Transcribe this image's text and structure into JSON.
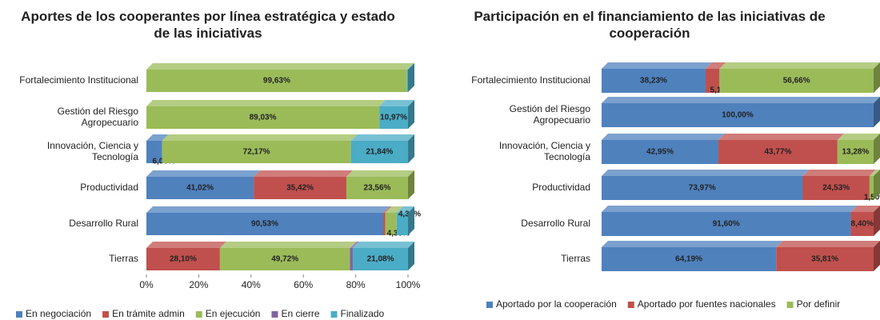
{
  "chart_data": [
    {
      "type": "bar",
      "orientation": "horizontal",
      "stacked": true,
      "title": "Aportes de los cooperantes por línea estratégica y estado de las iniciativas",
      "categories": [
        "Fortalecimiento Institucional",
        "Gestión del Riesgo Agropecuario",
        "Innovación, Ciencia y Tecnología",
        "Productividad",
        "Desarrollo Rural",
        "Tierras"
      ],
      "series": [
        {
          "name": "En negociación",
          "color": "#4f81bd",
          "values": [
            null,
            null,
            6.0,
            41.02,
            90.53,
            null
          ],
          "value_labels": [
            null,
            null,
            "6,00%",
            "41,02%",
            "90,53%",
            null
          ]
        },
        {
          "name": "En trámite admin",
          "color": "#c0504d",
          "values": [
            null,
            null,
            null,
            35.42,
            0.81,
            28.1
          ],
          "value_labels": [
            null,
            null,
            null,
            "35,42%",
            null,
            "28,10%"
          ]
        },
        {
          "name": "En ejecución",
          "color": "#9bbb59",
          "values": [
            99.63,
            89.03,
            72.17,
            23.56,
            4.33,
            49.72
          ],
          "value_labels": [
            "99,63%",
            "89,03%",
            "72,17%",
            "23,56%",
            "4,33%",
            "49,72%"
          ]
        },
        {
          "name": "En cierre",
          "color": "#8064a2",
          "values": [
            null,
            null,
            null,
            null,
            null,
            1.1
          ],
          "value_labels": [
            null,
            null,
            null,
            null,
            null,
            null
          ]
        },
        {
          "name": "Finalizado",
          "color": "#4bacc6",
          "values": [
            0.37,
            10.97,
            21.84,
            null,
            4.33,
            21.08
          ],
          "value_labels": [
            null,
            "10,97%",
            "21,84%",
            null,
            "4,33%",
            "21,08%"
          ]
        }
      ],
      "xlim": [
        0,
        100
      ],
      "xticks": [
        {
          "value": 0,
          "label": "0%"
        },
        {
          "value": 20,
          "label": "20%"
        },
        {
          "value": 40,
          "label": "40%"
        },
        {
          "value": 60,
          "label": "60%"
        },
        {
          "value": 80,
          "label": "80%"
        },
        {
          "value": 100,
          "label": "100%"
        }
      ],
      "legend": "bottom"
    },
    {
      "type": "bar",
      "orientation": "horizontal",
      "stacked": true,
      "title": "Participación en el financiamiento de las iniciativas de cooperación",
      "categories": [
        "Fortalecimiento Institucional",
        "Gestión del Riesgo Agropecuario",
        "Innovación, Ciencia y Tecnología",
        "Productividad",
        "Desarrollo Rural",
        "Tierras"
      ],
      "series": [
        {
          "name": "Aportado por la cooperación",
          "color": "#4f81bd",
          "values": [
            38.23,
            100.0,
            42.95,
            73.97,
            91.6,
            64.19
          ],
          "value_labels": [
            "38,23%",
            "100,00%",
            "42,95%",
            "73,97%",
            "91,60%",
            "64,19%"
          ]
        },
        {
          "name": "Aportado por fuentes nacionales",
          "color": "#c0504d",
          "values": [
            5.11,
            null,
            43.77,
            24.53,
            8.4,
            35.81
          ],
          "value_labels": [
            "5,11%",
            null,
            "43,77%",
            "24,53%",
            "8,40%",
            "35,81%"
          ]
        },
        {
          "name": "Por definir",
          "color": "#9bbb59",
          "values": [
            56.66,
            null,
            13.28,
            1.5,
            null,
            null
          ],
          "value_labels": [
            "56,66%",
            null,
            "13,28%",
            "1,50%",
            null,
            null
          ]
        }
      ],
      "xlim": [
        0,
        100
      ],
      "legend": "bottom"
    }
  ]
}
